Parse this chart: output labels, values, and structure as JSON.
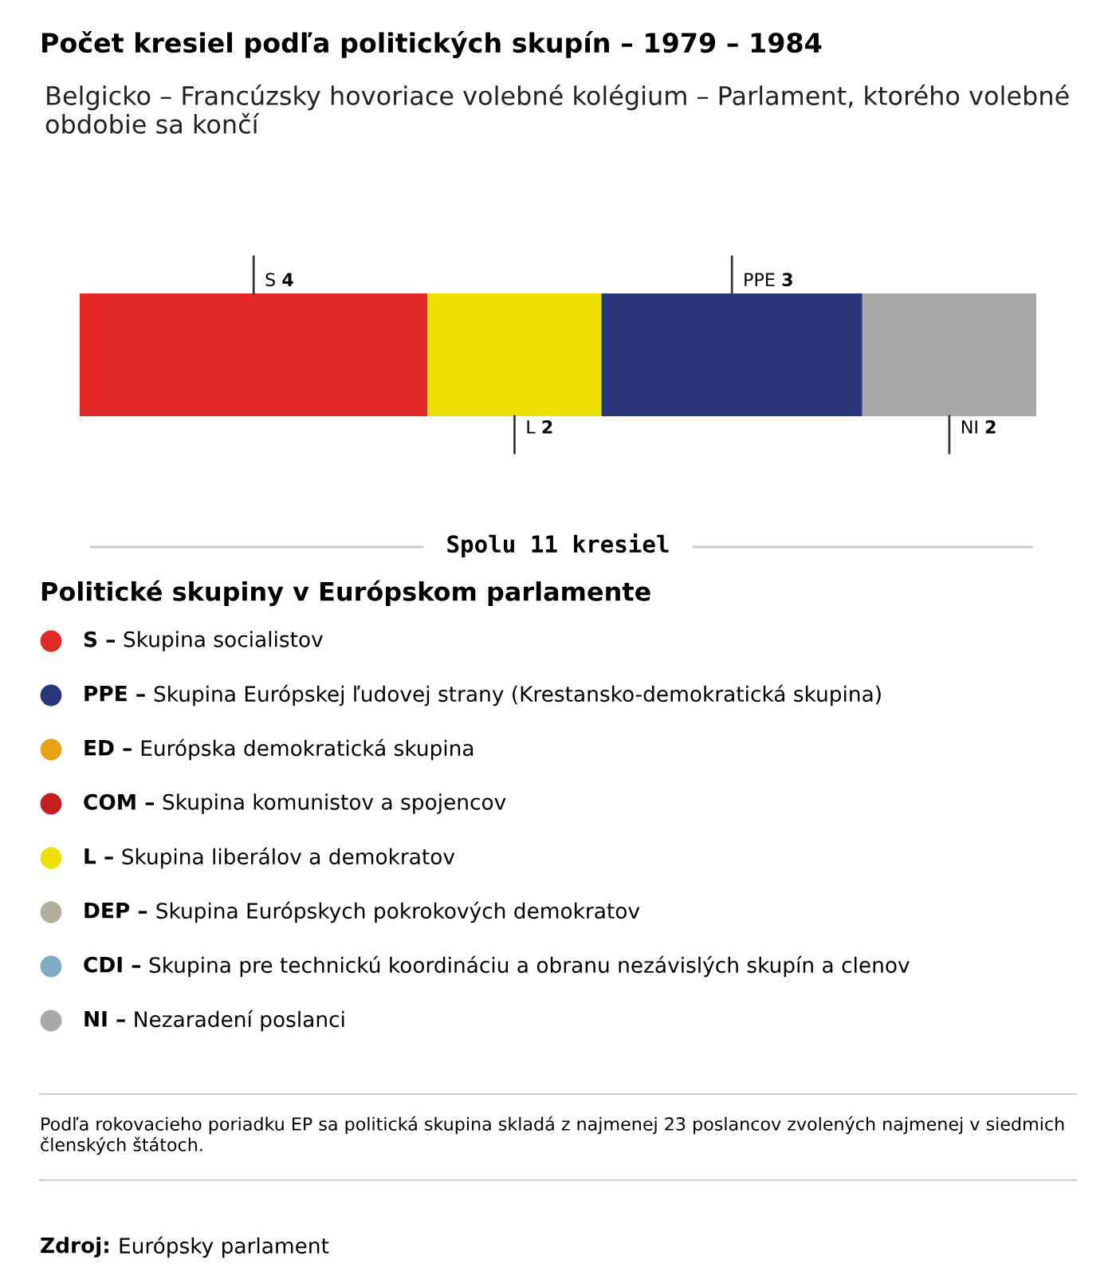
{
  "chart_data": [
    {
      "type": "bar",
      "orientation": "horizontal",
      "stacked": true,
      "title": "Počet kresiel podľa politických skupín – 1979 – 1984",
      "subtitle": "Belgicko – Francúzsky hovoriace volebné kolégium – Parlament, ktorého volebné obdobie sa končí",
      "categories": [
        null
      ],
      "tick_labels": false,
      "data_labels": true,
      "legend": false,
      "series": [
        {
          "name": "S",
          "color": "#e42a26",
          "values": [
            4
          ]
        },
        {
          "name": "L",
          "color": "#ede000",
          "values": [
            2
          ]
        },
        {
          "name": "PPE",
          "color": "#283779",
          "values": [
            3
          ]
        },
        {
          "name": "NI",
          "color": "#a9a9a9",
          "values": [
            2
          ]
        }
      ],
      "annotations": [
        "Spolu 11 kresiel",
        "Podľa rokovacieho poriadku EP sa politická skupina skladá z najmenej 23 poslancov zvolených najmenej v siedmich členských štátoch.",
        "Zdroj: Európsky parlament"
      ]
    },
    {
      "type": "other",
      "title": "Politické skupiny v Európskom parlamente",
      "categories": [
        "S – Skupina socialistov",
        "PPE – Skupina Európskej ľudovej strany (Krestansko-demokratická skupina)",
        "ED – Európska demokratická skupina",
        "COM – Skupina komunistov a spojencov",
        "L – Skupina liberálov a demokratov",
        "DEP – Skupina Európskych pokrokových demokratov",
        "CDI – Skupina pre technickú koordináciu a obranu nezávislých skupín a clenov",
        "NI – Nezaradení poslanci"
      ],
      "colors": [
        "#e42a26",
        "#283779",
        "#e8a317",
        "#c4201f",
        "#ede000",
        "#b5ad9c",
        "#7faac4",
        "#a9a9a9"
      ]
    }
  ]
}
